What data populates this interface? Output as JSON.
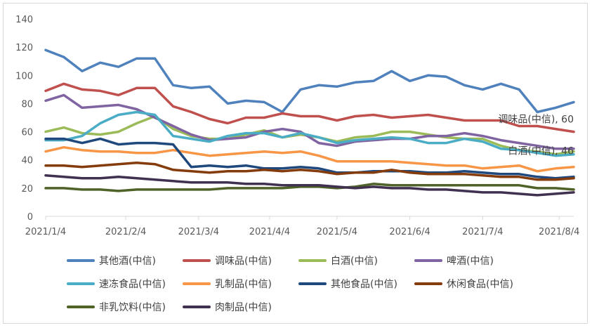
{
  "chart_data": {
    "type": "line",
    "title": "",
    "xlabel": "",
    "ylabel": "",
    "ylim": [
      0,
      140
    ],
    "yticks": [
      0,
      20,
      40,
      60,
      80,
      100,
      120,
      140
    ],
    "x_dates": [
      "2021/1/4",
      "2021/1/11",
      "2021/1/18",
      "2021/1/25",
      "2021/2/1",
      "2021/2/8",
      "2021/2/22",
      "2021/3/1",
      "2021/3/8",
      "2021/3/15",
      "2021/3/22",
      "2021/3/29",
      "2021/4/6",
      "2021/4/12",
      "2021/4/19",
      "2021/4/26",
      "2021/5/6",
      "2021/5/17",
      "2021/5/24",
      "2021/5/31",
      "2021/6/7",
      "2021/6/15",
      "2021/6/21",
      "2021/6/28",
      "2021/7/5",
      "2021/7/12",
      "2021/7/19",
      "2021/7/26",
      "2021/8/2",
      "2021/8/9"
    ],
    "xtick_labels": [
      "2021/1/4",
      "2021/2/4",
      "2021/3/4",
      "2021/4/4",
      "2021/5/4",
      "2021/6/4",
      "2021/7/4",
      "2021/8/4"
    ],
    "xtick_index": [
      0,
      4.4,
      8.4,
      12.3,
      16,
      20.0,
      24.0,
      28.2
    ],
    "series": [
      {
        "name": "其他酒(中信)",
        "color": "#4f81bd",
        "values": [
          118,
          113,
          103,
          109,
          106,
          112,
          112,
          93,
          91,
          92,
          80,
          82,
          81,
          74,
          90,
          93,
          92,
          95,
          96,
          103,
          96,
          100,
          99,
          93,
          90,
          94,
          90,
          74,
          77,
          81
        ]
      },
      {
        "name": "调味品(中信)",
        "color": "#c0504d",
        "values": [
          89,
          94,
          90,
          89,
          86,
          91,
          91,
          78,
          74,
          69,
          66,
          70,
          70,
          73,
          71,
          71,
          68,
          71,
          72,
          70,
          71,
          72,
          70,
          68,
          68,
          68,
          64,
          64,
          62,
          60
        ]
      },
      {
        "name": "白酒(中信)",
        "color": "#9bbb59",
        "values": [
          60,
          63,
          59,
          58,
          60,
          66,
          71,
          62,
          57,
          55,
          55,
          58,
          61,
          56,
          58,
          56,
          53,
          56,
          57,
          60,
          60,
          58,
          56,
          55,
          55,
          50,
          47,
          46,
          44,
          46
        ]
      },
      {
        "name": "啤酒(中信)",
        "color": "#8064a2",
        "values": [
          82,
          86,
          77,
          78,
          79,
          76,
          70,
          64,
          58,
          54,
          55,
          56,
          60,
          62,
          60,
          52,
          50,
          53,
          54,
          55,
          55,
          57,
          57,
          59,
          57,
          54,
          52,
          50,
          48,
          48
        ]
      },
      {
        "name": "速冻食品(中信)",
        "color": "#4bacc6",
        "values": [
          54,
          54,
          57,
          66,
          72,
          74,
          72,
          57,
          55,
          53,
          57,
          59,
          59,
          56,
          59,
          56,
          52,
          54,
          55,
          56,
          55,
          52,
          52,
          55,
          53,
          48,
          47,
          45,
          43,
          44
        ]
      },
      {
        "name": "乳制品(中信)",
        "color": "#f79646",
        "values": [
          46,
          49,
          47,
          46,
          46,
          45,
          45,
          47,
          45,
          43,
          44,
          45,
          46,
          45,
          46,
          43,
          39,
          39,
          39,
          39,
          38,
          37,
          36,
          36,
          34,
          35,
          36,
          32,
          34,
          35
        ]
      },
      {
        "name": "其他食品(中信)",
        "color": "#1f497d",
        "values": [
          55,
          55,
          52,
          55,
          51,
          52,
          52,
          51,
          35,
          36,
          35,
          36,
          34,
          34,
          35,
          34,
          31,
          31,
          32,
          32,
          32,
          31,
          31,
          32,
          31,
          30,
          30,
          28,
          27,
          28
        ]
      },
      {
        "name": "休闲食品(中信)",
        "color": "#843c0c",
        "values": [
          36,
          36,
          35,
          36,
          37,
          38,
          37,
          33,
          32,
          31,
          32,
          32,
          33,
          32,
          33,
          32,
          30,
          31,
          31,
          33,
          31,
          30,
          30,
          30,
          29,
          28,
          28,
          26,
          26,
          27
        ]
      },
      {
        "name": "非乳饮料(中信)",
        "color": "#4f6228",
        "values": [
          20,
          20,
          19,
          19,
          18,
          19,
          19,
          19,
          19,
          19,
          20,
          20,
          20,
          20,
          21,
          21,
          20,
          21,
          23,
          22,
          22,
          22,
          22,
          22,
          22,
          22,
          22,
          20,
          20,
          19
        ]
      },
      {
        "name": "肉制品(中信)",
        "color": "#403151",
        "values": [
          29,
          28,
          27,
          27,
          28,
          27,
          26,
          25,
          24,
          24,
          24,
          23,
          23,
          22,
          22,
          22,
          21,
          20,
          21,
          20,
          20,
          19,
          19,
          18,
          17,
          17,
          16,
          15,
          16,
          17
        ]
      }
    ],
    "annotations": [
      {
        "text": "调味品(中信), 60",
        "series": "调味品(中信)"
      },
      {
        "text": "白酒(中信), 46",
        "series": "白酒(中信)"
      }
    ],
    "legend_position": "bottom"
  }
}
